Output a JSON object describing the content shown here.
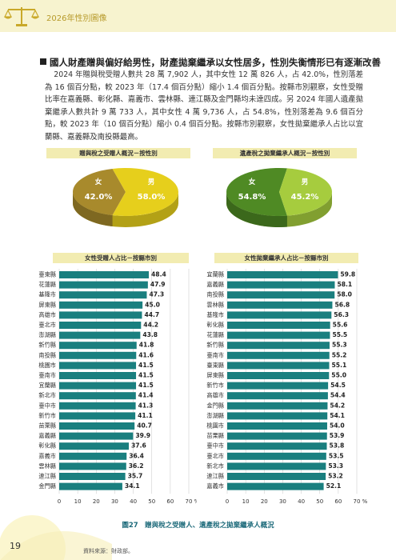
{
  "header": {
    "title": "2026年性別圖像"
  },
  "section": {
    "headline": "國人財產贈與偏好給男性，財產拋棄繼承以女性居多，性別失衡情形已有逐漸改善",
    "paragraph": "2024 年贈與稅受贈人數共 28 萬 7,902 人，其中女性 12 萬 826 人，占 42.0%，性別落差為 16 個百分點，較 2023 年（17.4 個百分點）縮小 1.4 個百分點。按縣市別觀察，女性受贈比率在嘉義縣、彰化縣、嘉義市、雲林縣、連江縣及金門縣均未達四成。另 2024 年國人遺產拋棄繼承人數共計 9 萬 733 人，其中女性 4 萬 9,736 人，占 54.8%，性別落差為 9.6 個百分點，較 2023 年（10 個百分點）縮小 0.4 個百分點。按縣市別觀察，女性拋棄繼承人占比以宜蘭縣、嘉義縣及南投縣最高。"
  },
  "colors": {
    "gold_female": "#a88a2c",
    "gold_male": "#e6cf1c",
    "green_female": "#4f8a24",
    "green_male": "#a6cc3e",
    "bar_teal": "#1a7f7f"
  },
  "chart_data": [
    {
      "type": "pie",
      "title": "贈與稅之受贈人概況－按性別",
      "slices": [
        {
          "label": "女",
          "value": 42.0,
          "text": "42.0%"
        },
        {
          "label": "男",
          "value": 58.0,
          "text": "58.0%"
        }
      ]
    },
    {
      "type": "pie",
      "title": "遺產稅之拋棄繼承人概況－按性別",
      "slices": [
        {
          "label": "女",
          "value": 54.8,
          "text": "54.8%"
        },
        {
          "label": "男",
          "value": 45.2,
          "text": "45.2%"
        }
      ]
    },
    {
      "type": "bar",
      "orientation": "horizontal",
      "title": "女性受贈人占比－按縣市別",
      "xlabel": "%",
      "xlim": [
        0,
        70
      ],
      "xticks": [
        "0",
        "10",
        "20",
        "30",
        "40",
        "50",
        "60",
        "70"
      ],
      "categories": [
        "臺東縣",
        "花蓮縣",
        "基隆市",
        "屏東縣",
        "高雄市",
        "臺北市",
        "澎湖縣",
        "新竹縣",
        "南投縣",
        "桃園市",
        "臺南市",
        "宜蘭縣",
        "新北市",
        "臺中市",
        "新竹市",
        "苗栗縣",
        "嘉義縣",
        "彰化縣",
        "嘉義市",
        "雲林縣",
        "連江縣",
        "金門縣"
      ],
      "values": [
        48.4,
        47.9,
        47.3,
        45.0,
        44.7,
        44.2,
        43.8,
        41.8,
        41.6,
        41.5,
        41.5,
        41.5,
        41.4,
        41.3,
        41.1,
        40.7,
        39.9,
        37.6,
        36.4,
        36.2,
        35.7,
        34.1
      ],
      "labels": [
        "48.4",
        "47.9",
        "47.3",
        "45.0",
        "44.7",
        "44.2",
        "43.8",
        "41.8",
        "41.6",
        "41.5",
        "41.5",
        "41.5",
        "41.4",
        "41.3",
        "41.1",
        "40.7",
        "39.9",
        "37.6",
        "36.4",
        "36.2",
        "35.7",
        "34.1"
      ]
    },
    {
      "type": "bar",
      "orientation": "horizontal",
      "title": "女性拋棄繼承人占比－按縣市別",
      "xlabel": "%",
      "xlim": [
        0,
        70
      ],
      "xticks": [
        "0",
        "10",
        "20",
        "30",
        "40",
        "50",
        "60",
        "70"
      ],
      "categories": [
        "宜蘭縣",
        "嘉義縣",
        "南投縣",
        "雲林縣",
        "基隆市",
        "彰化縣",
        "花蓮縣",
        "新竹縣",
        "臺南市",
        "臺東縣",
        "屏東縣",
        "新竹市",
        "高雄市",
        "金門縣",
        "澎湖縣",
        "桃園市",
        "苗栗縣",
        "臺中市",
        "臺北市",
        "新北市",
        "連江縣",
        "嘉義市"
      ],
      "values": [
        59.8,
        58.1,
        58.0,
        56.8,
        56.3,
        55.6,
        55.5,
        55.3,
        55.2,
        55.1,
        55.0,
        54.5,
        54.4,
        54.2,
        54.1,
        54.0,
        53.9,
        53.8,
        53.5,
        53.3,
        53.2,
        52.1
      ],
      "labels": [
        "59.8",
        "58.1",
        "58.0",
        "56.8",
        "56.3",
        "55.6",
        "55.5",
        "55.3",
        "55.2",
        "55.1",
        "55.0",
        "54.5",
        "54.4",
        "54.2",
        "54.1",
        "54.0",
        "53.9",
        "53.8",
        "53.5",
        "53.3",
        "53.2",
        "52.1"
      ]
    }
  ],
  "figure": {
    "caption": "圖27　贈與稅之受贈人、遺產稅之拋棄繼承人概況"
  },
  "footer": {
    "source": "資料來源：財政部。",
    "page_number": "19"
  }
}
